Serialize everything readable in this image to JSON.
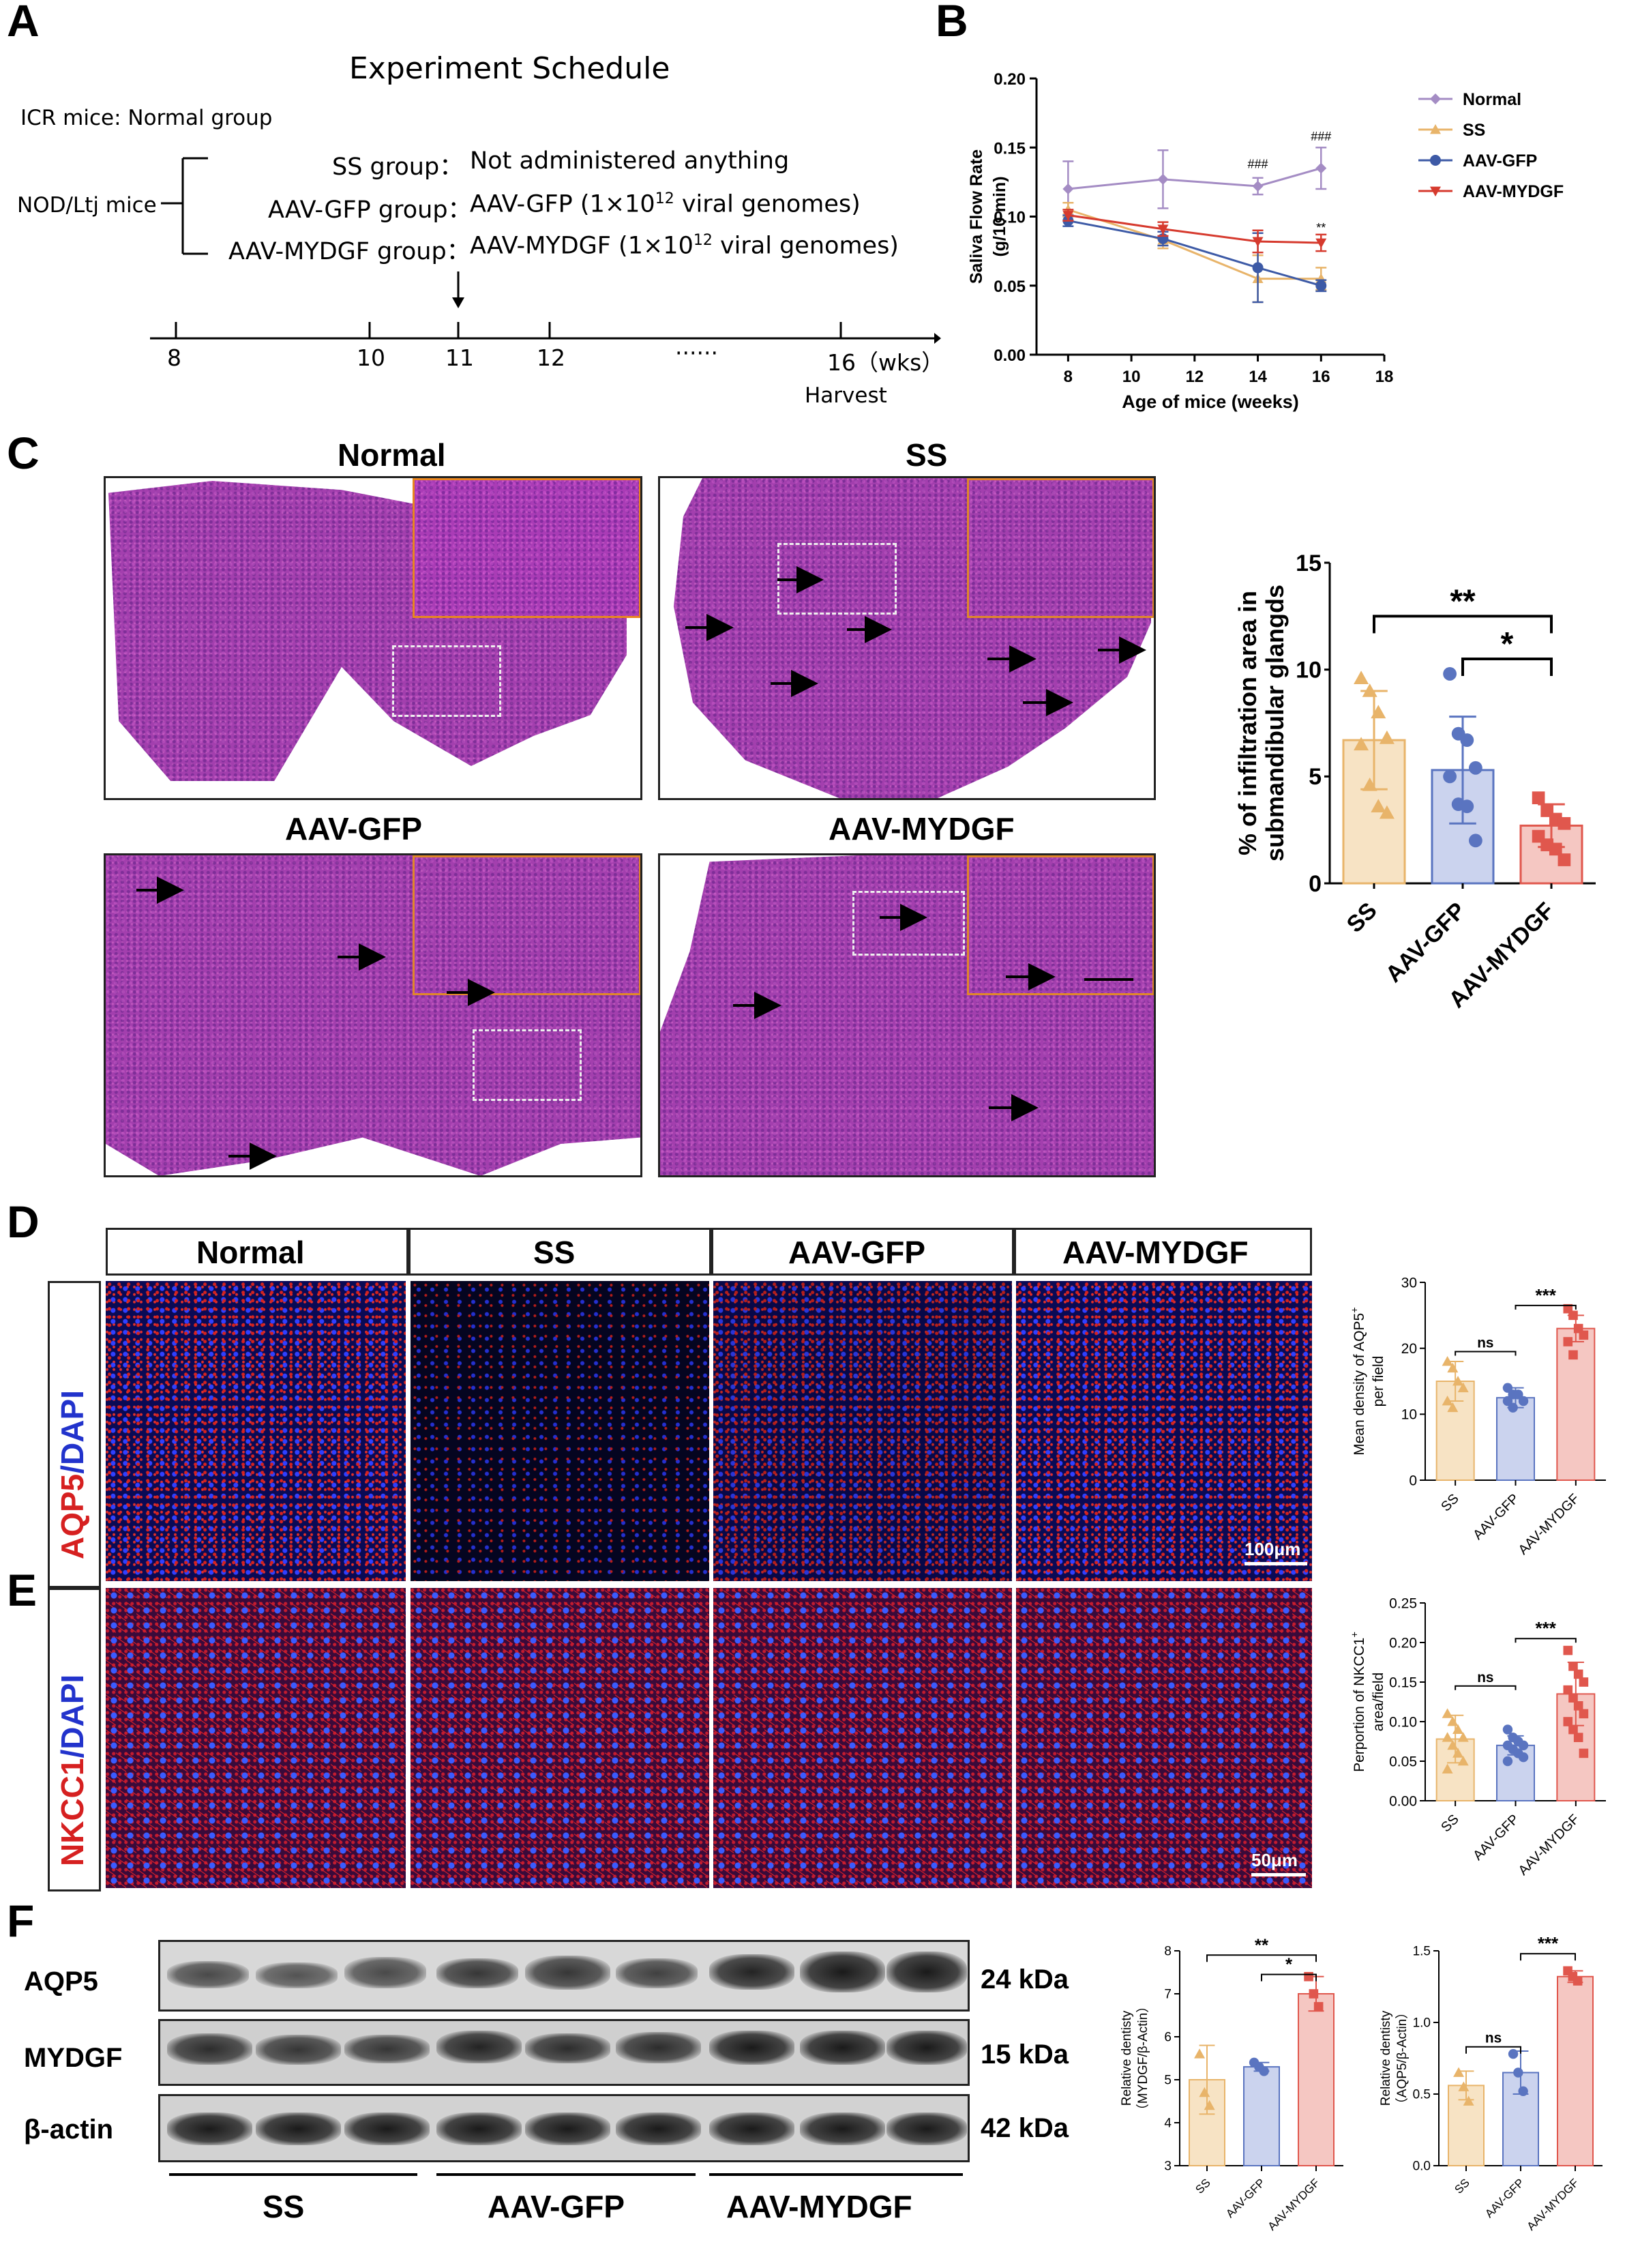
{
  "panel_labels": {
    "a": "A",
    "b": "B",
    "c": "C",
    "d": "D",
    "e": "E",
    "f": "F"
  },
  "schedule": {
    "title": "Experiment Schedule",
    "icr": "ICR mice: Normal group",
    "nod": "NOD/Ltj mice",
    "groups": [
      {
        "name": "SS group：",
        "desc": "Not administered anything"
      },
      {
        "name": "AAV-GFP group：",
        "desc": "AAV-GFP (1×10",
        "exp": "12",
        "tail": " viral genomes)"
      },
      {
        "name": "AAV-MYDGF group：",
        "desc": "AAV-MYDGF (1×10",
        "exp": "12",
        "tail": " viral genomes)"
      }
    ],
    "ticks": [
      "8",
      "10",
      "11",
      "12",
      "······",
      "16（wks）"
    ],
    "harvest": "Harvest"
  },
  "chart_data": [
    {
      "id": "B",
      "type": "line",
      "xlabel": "Age of mice (weeks)",
      "ylabel_line1": "Saliva Flow Rate",
      "ylabel_line2": "(g/10 min)",
      "xlim": [
        7,
        18
      ],
      "xticks": [
        8,
        10,
        12,
        14,
        16,
        18
      ],
      "ylim": [
        0,
        0.2
      ],
      "yticks": [
        "0.00",
        "0.05",
        "0.10",
        "0.15",
        "0.20"
      ],
      "legend_position": "right",
      "series": [
        {
          "name": "Normal",
          "color": "#a48cc4",
          "marker": "diamond",
          "x": [
            8,
            11,
            14,
            16
          ],
          "y": [
            0.12,
            0.127,
            0.122,
            0.135
          ],
          "err": [
            0.02,
            0.021,
            0.006,
            0.015
          ]
        },
        {
          "name": "SS",
          "color": "#e8b46a",
          "marker": "triangle",
          "x": [
            8,
            11,
            14,
            16
          ],
          "y": [
            0.105,
            0.083,
            0.055,
            0.055
          ],
          "err": [
            0.005,
            0.006,
            0.017,
            0.008
          ]
        },
        {
          "name": "AAV-GFP",
          "color": "#3d5aa6",
          "marker": "circle",
          "x": [
            8,
            11,
            14,
            16
          ],
          "y": [
            0.097,
            0.084,
            0.063,
            0.05
          ],
          "err": [
            0.004,
            0.005,
            0.025,
            0.004
          ]
        },
        {
          "name": "AAV-MYDGF",
          "color": "#d63a2e",
          "marker": "triangle-down",
          "x": [
            8,
            11,
            14,
            16
          ],
          "y": [
            0.101,
            0.091,
            0.082,
            0.081
          ],
          "err": [
            0.004,
            0.005,
            0.008,
            0.006
          ]
        }
      ],
      "annotations": [
        {
          "text": "###",
          "x": 14,
          "y": 0.135
        },
        {
          "text": "###",
          "x": 16,
          "y": 0.155
        },
        {
          "text": "**",
          "x": 16,
          "y": 0.089
        }
      ]
    },
    {
      "id": "C",
      "type": "bar",
      "ylabel_line1": "% of infiltration area in",
      "ylabel_line2": "submandibular glangds",
      "categories": [
        "SS",
        "AAV-GFP",
        "AAV-MYDGF"
      ],
      "values": [
        6.7,
        5.3,
        2.7
      ],
      "err": [
        2.3,
        2.5,
        1.0
      ],
      "colors": [
        "#e8b46a",
        "#5a74c0",
        "#e0574d"
      ],
      "fills": [
        "#f7e3c4",
        "#cbd3ee",
        "#f5c7c2"
      ],
      "points": [
        [
          9.6,
          9.0,
          8.0,
          6.8,
          6.5,
          4.6,
          3.6,
          3.3
        ],
        [
          9.8,
          7.0,
          6.7,
          5.4,
          5.0,
          3.7,
          3.6,
          2.0
        ],
        [
          4.0,
          3.4,
          3.0,
          2.8,
          2.2,
          1.8,
          1.6,
          1.1
        ]
      ],
      "ylim": [
        0,
        15
      ],
      "yticks": [
        0,
        5,
        10,
        15
      ],
      "sig": [
        {
          "from": 0,
          "to": 2,
          "text": "**",
          "y": 12.5
        },
        {
          "from": 1,
          "to": 2,
          "text": "*",
          "y": 10.5
        }
      ]
    },
    {
      "id": "D",
      "type": "bar",
      "ylabel_line1": "Mean density of AQP5",
      "ylabel_sup": "+",
      "ylabel_line2": "per field",
      "categories": [
        "SS",
        "AAV-GFP",
        "AAV-MYDGF"
      ],
      "values": [
        15,
        12.5,
        23
      ],
      "err": [
        3,
        1.5,
        2
      ],
      "colors": [
        "#e8b46a",
        "#5a74c0",
        "#e0574d"
      ],
      "fills": [
        "#f7e3c4",
        "#cbd3ee",
        "#f5c7c2"
      ],
      "points": [
        [
          18,
          17,
          15,
          14,
          12,
          11
        ],
        [
          14,
          13,
          13,
          12,
          12,
          11
        ],
        [
          26,
          25,
          23,
          22,
          21,
          19
        ]
      ],
      "ylim": [
        0,
        30
      ],
      "yticks": [
        "0",
        "10",
        "20",
        "30"
      ],
      "sig": [
        {
          "from": 1,
          "to": 2,
          "text": "***",
          "y": 26.5
        },
        {
          "from": 0,
          "to": 1,
          "text": "ns",
          "y": 19.5
        }
      ]
    },
    {
      "id": "E",
      "type": "bar",
      "ylabel_line1": "Perportion of NKCC1",
      "ylabel_sup": "+",
      "ylabel_line2": "area/field",
      "categories": [
        "SS",
        "AAV-GFP",
        "AAV-MYDGF"
      ],
      "values": [
        0.078,
        0.07,
        0.135
      ],
      "err": [
        0.03,
        0.012,
        0.04
      ],
      "colors": [
        "#e8b46a",
        "#5a74c0",
        "#e0574d"
      ],
      "fills": [
        "#f7e3c4",
        "#cbd3ee",
        "#f5c7c2"
      ],
      "points": [
        [
          0.11,
          0.1,
          0.09,
          0.08,
          0.08,
          0.07,
          0.06,
          0.05,
          0.04
        ],
        [
          0.09,
          0.08,
          0.075,
          0.07,
          0.07,
          0.065,
          0.06,
          0.055,
          0.05
        ],
        [
          0.19,
          0.17,
          0.16,
          0.15,
          0.14,
          0.13,
          0.12,
          0.11,
          0.1,
          0.09,
          0.08,
          0.06
        ]
      ],
      "ylim": [
        0,
        0.25
      ],
      "yticks": [
        "0.00",
        "0.05",
        "0.10",
        "0.15",
        "0.20",
        "0.25"
      ],
      "sig": [
        {
          "from": 1,
          "to": 2,
          "text": "***",
          "y": 0.205
        },
        {
          "from": 0,
          "to": 1,
          "text": "ns",
          "y": 0.145
        }
      ]
    },
    {
      "id": "F1",
      "type": "bar",
      "ylabel_line1": "Relative dentisty",
      "ylabel_line2": "（MYDGF/β-Actin）",
      "categories": [
        "SS",
        "AAV-GFP",
        "AAV-MYDGF"
      ],
      "values": [
        5.0,
        5.3,
        7.0
      ],
      "err": [
        0.8,
        0.1,
        0.4
      ],
      "colors": [
        "#e8b46a",
        "#5a74c0",
        "#e0574d"
      ],
      "fills": [
        "#f7e3c4",
        "#cbd3ee",
        "#f5c7c2"
      ],
      "points": [
        [
          5.6,
          4.7,
          4.4
        ],
        [
          5.4,
          5.3,
          5.2
        ],
        [
          7.4,
          7.0,
          6.7
        ]
      ],
      "ylim": [
        3,
        8
      ],
      "yticks": [
        "3",
        "4",
        "5",
        "6",
        "7",
        "8"
      ],
      "sig": [
        {
          "from": 0,
          "to": 2,
          "text": "**",
          "y": 7.9
        },
        {
          "from": 1,
          "to": 2,
          "text": "*",
          "y": 7.45
        }
      ]
    },
    {
      "id": "F2",
      "type": "bar",
      "ylabel_line1": "Relative dentisty",
      "ylabel_line2": "（AQP5/β-Actin）",
      "categories": [
        "SS",
        "AAV-GFP",
        "AAV-MYDGF"
      ],
      "values": [
        0.56,
        0.65,
        1.32
      ],
      "err": [
        0.1,
        0.15,
        0.04
      ],
      "colors": [
        "#e8b46a",
        "#5a74c0",
        "#e0574d"
      ],
      "fills": [
        "#f7e3c4",
        "#cbd3ee",
        "#f5c7c2"
      ],
      "points": [
        [
          0.65,
          0.55,
          0.45
        ],
        [
          0.78,
          0.65,
          0.52
        ],
        [
          1.36,
          1.32,
          1.29
        ]
      ],
      "ylim": [
        0,
        1.5
      ],
      "yticks": [
        "0.0",
        "0.5",
        "1.0",
        "1.5"
      ],
      "sig": [
        {
          "from": 1,
          "to": 2,
          "text": "***",
          "y": 1.48
        },
        {
          "from": 0,
          "to": 1,
          "text": "ns",
          "y": 0.83
        }
      ]
    }
  ],
  "he": {
    "titles": [
      "Normal",
      "SS",
      "AAV-GFP",
      "AAV-MYDGF"
    ]
  },
  "fluor": {
    "col_titles": [
      "Normal",
      "SS",
      "AAV-GFP",
      "AAV-MYDGF"
    ],
    "row_d_red": "AQP5",
    "row_d_blue": "/DAPI",
    "row_e_red": "NKCC1",
    "row_e_blue": "/DAPI",
    "scale_d": "100μm",
    "scale_e": "50μm",
    "red": "#d62020",
    "blue": "#2233cc"
  },
  "western": {
    "rows": [
      "AQP5",
      "MYDGF",
      "β-actin"
    ],
    "sizes": [
      "24 kDa",
      "15 kDa",
      "42 kDa"
    ],
    "groups": [
      "SS",
      "AAV-GFP",
      "AAV-MYDGF"
    ]
  }
}
